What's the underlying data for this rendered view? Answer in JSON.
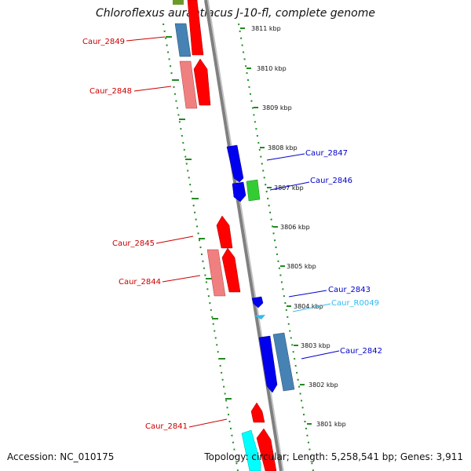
{
  "title": "Chloroflexus aurantiacus J-10-fl, complete genome",
  "footer": {
    "accession": "Accession: NC_010175",
    "summary": "Topology: circular; Length: 5,258,541 bp; Genes: 3,911"
  },
  "colors": {
    "forward_cds": "#ff0000",
    "forward_cds_light": "#f08080",
    "reverse_cds": "#0000ee",
    "reverse_cds_steel": "#4682b4",
    "reverse_rna": "#33bbee",
    "green_feature": "#33cc33",
    "dotted_ring": "#228b22",
    "backbone": "#808080",
    "label_forward": "#cc0000",
    "label_reverse": "#0000cc",
    "label_rna": "#33bbee"
  },
  "ticks": [
    "3811 kbp",
    "3810 kbp",
    "3809 kbp",
    "3808 kbp",
    "3807 kbp",
    "3806 kbp",
    "3805 kbp",
    "3804 kbp",
    "3803 kbp",
    "3802 kbp",
    "3801 kbp"
  ],
  "gene_labels": [
    {
      "id": "Caur_2849",
      "strand": "forward"
    },
    {
      "id": "Caur_2848",
      "strand": "forward"
    },
    {
      "id": "Caur_2847",
      "strand": "reverse"
    },
    {
      "id": "Caur_2846",
      "strand": "reverse"
    },
    {
      "id": "Caur_2845",
      "strand": "forward"
    },
    {
      "id": "Caur_2844",
      "strand": "forward"
    },
    {
      "id": "Caur_2843",
      "strand": "reverse"
    },
    {
      "id": "Caur_R0049",
      "strand": "rna"
    },
    {
      "id": "Caur_2842",
      "strand": "reverse"
    },
    {
      "id": "Caur_2841",
      "strand": "forward"
    }
  ]
}
